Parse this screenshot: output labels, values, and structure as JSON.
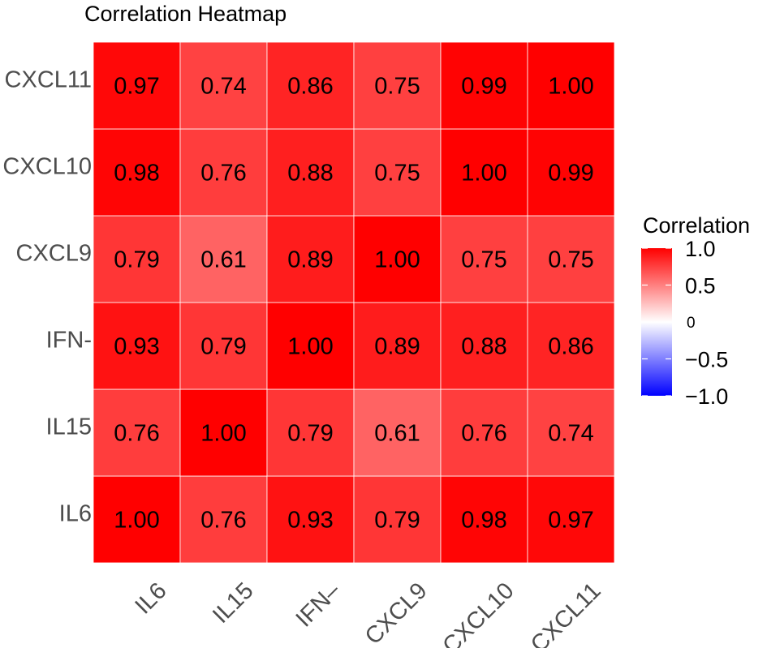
{
  "chart_data": {
    "type": "heatmap",
    "title": "Correlation Heatmap",
    "x_categories": [
      "IL6",
      "IL15",
      "IFN–",
      "CXCL9",
      "CXCL10",
      "CXCL11"
    ],
    "y_categories": [
      "IL6",
      "IL15",
      "IFN-",
      "CXCL9",
      "CXCL10",
      "CXCL11"
    ],
    "values": [
      [
        1.0,
        0.76,
        0.93,
        0.79,
        0.98,
        0.97
      ],
      [
        0.76,
        1.0,
        0.79,
        0.61,
        0.76,
        0.74
      ],
      [
        0.93,
        0.79,
        1.0,
        0.89,
        0.88,
        0.86
      ],
      [
        0.79,
        0.61,
        0.89,
        1.0,
        0.75,
        0.75
      ],
      [
        0.98,
        0.76,
        0.88,
        0.75,
        1.0,
        0.99
      ],
      [
        0.97,
        0.74,
        0.86,
        0.75,
        0.99,
        1.0
      ]
    ],
    "value_labels": [
      [
        "1.00",
        "0.76",
        "0.93",
        "0.79",
        "0.98",
        "0.97"
      ],
      [
        "0.76",
        "1.00",
        "0.79",
        "0.61",
        "0.76",
        "0.74"
      ],
      [
        "0.93",
        "0.79",
        "1.00",
        "0.89",
        "0.88",
        "0.86"
      ],
      [
        "0.79",
        "0.61",
        "0.89",
        "1.00",
        "0.75",
        "0.75"
      ],
      [
        "0.98",
        "0.76",
        "0.88",
        "0.75",
        "1.00",
        "0.99"
      ],
      [
        "0.97",
        "0.74",
        "0.86",
        "0.75",
        "0.99",
        "1.00"
      ]
    ],
    "legend": {
      "title": "Correlation",
      "range": [
        -1,
        1
      ],
      "ticks": [
        1.0,
        0.5,
        0,
        -0.5,
        -1.0
      ],
      "tick_labels": [
        "1.0",
        "0.5",
        "0",
        "−0.5",
        "−1.0"
      ],
      "colors": {
        "low": "#0000ff",
        "mid": "#ffffff",
        "high": "#ff0000"
      },
      "position": "right"
    }
  }
}
